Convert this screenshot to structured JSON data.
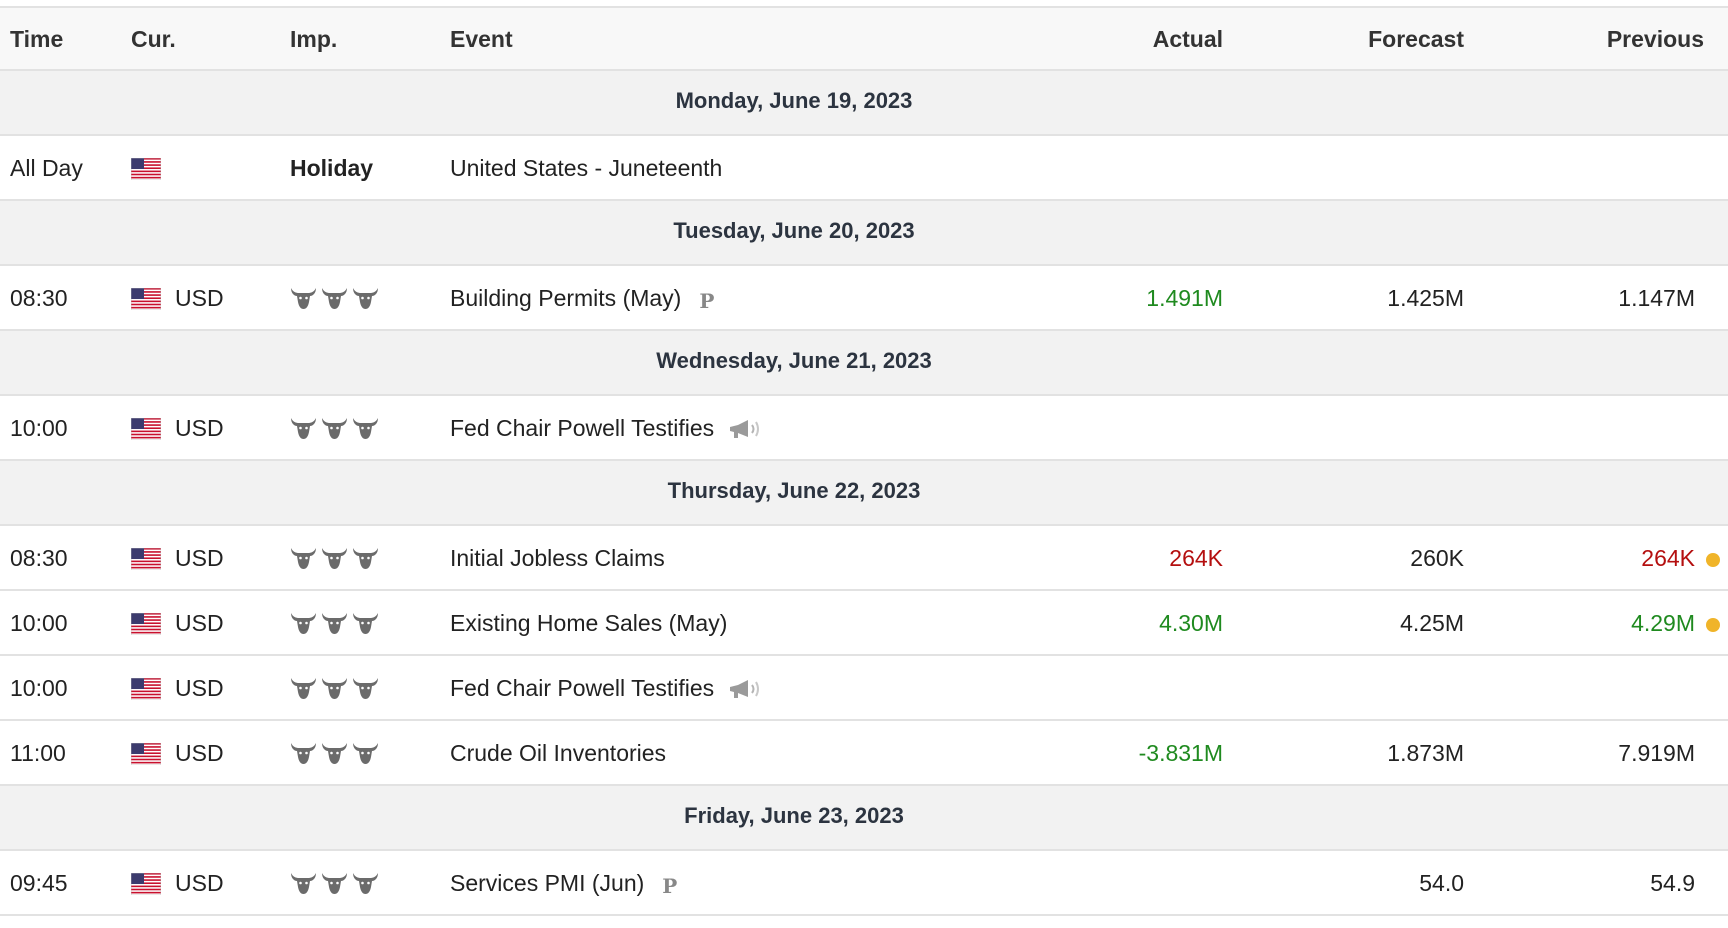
{
  "columns": {
    "time": "Time",
    "currency": "Cur.",
    "importance": "Imp.",
    "event": "Event",
    "actual": "Actual",
    "forecast": "Forecast",
    "previous": "Previous"
  },
  "icons": {
    "flag": "us-flag-icon",
    "importance": "bull-head-icon",
    "preliminary": "preliminary-p-icon",
    "speech": "speaker-icon",
    "revised_dot": "revision-dot-icon"
  },
  "colors": {
    "positive": "#1f8a1f",
    "negative": "#b40f0f",
    "dot": "#f0b429"
  },
  "days": [
    {
      "date": "Monday, June 19, 2023",
      "events": [
        {
          "time": "All Day",
          "currency": "",
          "importance": "Holiday",
          "event": "United States - Juneteenth",
          "actual": "",
          "forecast": "",
          "previous": ""
        }
      ]
    },
    {
      "date": "Tuesday, June 20, 2023",
      "events": [
        {
          "time": "08:30",
          "currency": "USD",
          "importance": 3,
          "event": "Building Permits (May)",
          "tag": "P",
          "actual": "1.491M",
          "actual_color": "green",
          "forecast": "1.425M",
          "previous": "1.147M"
        }
      ]
    },
    {
      "date": "Wednesday, June 21, 2023",
      "events": [
        {
          "time": "10:00",
          "currency": "USD",
          "importance": 3,
          "event": "Fed Chair Powell Testifies",
          "speech": true,
          "actual": "",
          "forecast": "",
          "previous": ""
        }
      ]
    },
    {
      "date": "Thursday, June 22, 2023",
      "events": [
        {
          "time": "08:30",
          "currency": "USD",
          "importance": 3,
          "event": "Initial Jobless Claims",
          "actual": "264K",
          "actual_color": "red",
          "forecast": "260K",
          "previous": "264K",
          "previous_color": "red",
          "dot": true
        },
        {
          "time": "10:00",
          "currency": "USD",
          "importance": 3,
          "event": "Existing Home Sales (May)",
          "actual": "4.30M",
          "actual_color": "green",
          "forecast": "4.25M",
          "previous": "4.29M",
          "previous_color": "green",
          "dot": true
        },
        {
          "time": "10:00",
          "currency": "USD",
          "importance": 3,
          "event": "Fed Chair Powell Testifies",
          "speech": true,
          "actual": "",
          "forecast": "",
          "previous": ""
        },
        {
          "time": "11:00",
          "currency": "USD",
          "importance": 3,
          "event": "Crude Oil Inventories",
          "actual": "-3.831M",
          "actual_color": "green",
          "forecast": "1.873M",
          "previous": "7.919M"
        }
      ]
    },
    {
      "date": "Friday, June 23, 2023",
      "events": [
        {
          "time": "09:45",
          "currency": "USD",
          "importance": 3,
          "event": "Services PMI (Jun)",
          "tag": "P",
          "actual": "",
          "forecast": "54.0",
          "previous": "54.9"
        }
      ]
    }
  ]
}
